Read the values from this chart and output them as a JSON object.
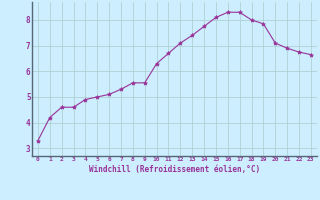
{
  "x": [
    0,
    1,
    2,
    3,
    4,
    5,
    6,
    7,
    8,
    9,
    10,
    11,
    12,
    13,
    14,
    15,
    16,
    17,
    18,
    19,
    20,
    21,
    22,
    23
  ],
  "y": [
    3.3,
    4.2,
    4.6,
    4.6,
    4.9,
    5.0,
    5.1,
    5.3,
    5.55,
    5.55,
    6.3,
    6.7,
    7.1,
    7.4,
    7.75,
    8.1,
    8.3,
    8.3,
    8.0,
    7.85,
    7.1,
    6.9,
    6.75,
    6.65
  ],
  "line_color": "#993399",
  "marker": "*",
  "marker_color": "#993399",
  "marker_size": 3,
  "background_color": "#cceeff",
  "grid_color": "#aacccc",
  "xlabel": "Windchill (Refroidissement éolien,°C)",
  "xlabel_color": "#993399",
  "tick_color": "#993399",
  "ylim": [
    2.7,
    8.7
  ],
  "xlim": [
    -0.5,
    23.5
  ],
  "yticks": [
    3,
    4,
    5,
    6,
    7,
    8
  ],
  "xticks": [
    0,
    1,
    2,
    3,
    4,
    5,
    6,
    7,
    8,
    9,
    10,
    11,
    12,
    13,
    14,
    15,
    16,
    17,
    18,
    19,
    20,
    21,
    22,
    23
  ]
}
